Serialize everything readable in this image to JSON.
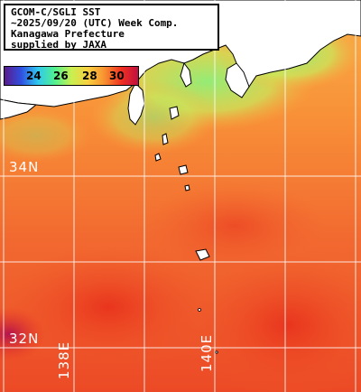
{
  "title": {
    "line1": "GCOM-C/SGLI SST",
    "line2": "~2025/09/20 (UTC) Week Comp.",
    "line3": "Kanagawa Prefecture",
    "line4": "supplied by JAXA"
  },
  "colorbar": {
    "ticks": [
      "24",
      "26",
      "28",
      "30"
    ],
    "colors": [
      "#5a1a8c",
      "#3050e0",
      "#30c8f0",
      "#50f090",
      "#c8f050",
      "#f8d040",
      "#f89030",
      "#f03020",
      "#c01040"
    ]
  },
  "grid": {
    "lat_labels": [
      "34N",
      "32N"
    ],
    "lon_labels": [
      "138E",
      "140E"
    ]
  },
  "colors": {
    "land": "#ffffff",
    "coastline": "#000000",
    "gridline": "#ffffff",
    "sst_warm": "#f04a28",
    "sst_mid": "#f89038",
    "sst_cool": "#c8f060",
    "sst_cold": "#60e890"
  }
}
